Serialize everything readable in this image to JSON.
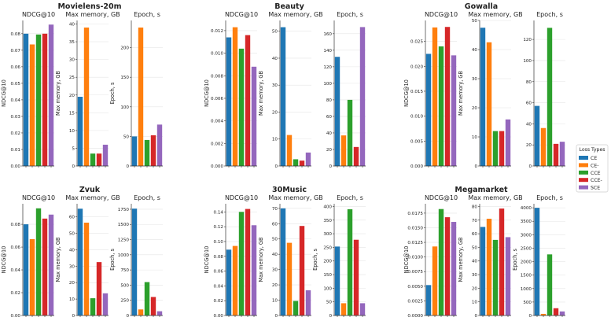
{
  "colors": {
    "CE": "#1f77b4",
    "CE-": "#ff7f0e",
    "CCE": "#2ca02c",
    "CCE-": "#d62728",
    "SCE": "#9467bd"
  },
  "legend": {
    "title": "Loss Types",
    "entries": [
      "CE",
      "CE-",
      "CCE",
      "CCE-",
      "SCE"
    ]
  },
  "chart_data": [
    {
      "type": "bar",
      "dataset": "Movielens-20m",
      "metric": "NDCG@10",
      "title": "NDCG@10",
      "ylabel": "NDCG@10",
      "categories": [
        "CE",
        "CE-",
        "CCE",
        "CCE-",
        "SCE"
      ],
      "values": [
        0.08,
        0.0735,
        0.0795,
        0.08,
        0.0855
      ],
      "ylim": [
        0,
        0.088
      ],
      "yticks": [
        "0.00",
        "0.01",
        "0.02",
        "0.03",
        "0.04",
        "0.05",
        "0.06",
        "0.07",
        "0.08"
      ],
      "ytick_values": [
        0,
        0.01,
        0.02,
        0.03,
        0.04,
        0.05,
        0.06,
        0.07,
        0.08
      ]
    },
    {
      "type": "bar",
      "dataset": "Movielens-20m",
      "metric": "Max memory, GB",
      "title": "Max memory, GB",
      "ylabel": "Max memory, GB",
      "categories": [
        "CE",
        "CE-",
        "CCE",
        "CCE-",
        "SCE"
      ],
      "values": [
        19.5,
        39,
        3.5,
        3.5,
        6
      ],
      "ylim": [
        0,
        41
      ],
      "yticks": [
        "0",
        "5",
        "10",
        "15",
        "20",
        "25",
        "30",
        "35",
        "40"
      ],
      "ytick_values": [
        0,
        5,
        10,
        15,
        20,
        25,
        30,
        35,
        40
      ]
    },
    {
      "type": "bar",
      "dataset": "Movielens-20m",
      "metric": "Epoch, s",
      "title": "Epoch, s",
      "ylabel": "Epoch, s",
      "categories": [
        "CE",
        "CE-",
        "CCE",
        "CCE-",
        "SCE"
      ],
      "values": [
        50,
        234,
        44,
        52,
        70
      ],
      "ylim": [
        0,
        246
      ],
      "yticks": [
        "0",
        "50",
        "100",
        "150",
        "200"
      ],
      "ytick_values": [
        0,
        50,
        100,
        150,
        200
      ]
    },
    {
      "type": "bar",
      "dataset": "Beauty",
      "metric": "NDCG@10",
      "title": "NDCG@10",
      "ylabel": "NDCG@10",
      "categories": [
        "CE",
        "CE-",
        "CCE",
        "CCE-",
        "SCE"
      ],
      "values": [
        0.0114,
        0.0123,
        0.0104,
        0.0116,
        0.0088
      ],
      "ylim": [
        0,
        0.0129
      ],
      "yticks": [
        "0.000",
        "0.002",
        "0.004",
        "0.006",
        "0.008",
        "0.010",
        "0.012"
      ],
      "ytick_values": [
        0,
        0.002,
        0.004,
        0.006,
        0.008,
        0.01,
        0.012
      ]
    },
    {
      "type": "bar",
      "dataset": "Beauty",
      "metric": "Max memory, GB",
      "title": "Max memory, GB",
      "ylabel": "Max memory, GB",
      "categories": [
        "CE",
        "CE-",
        "CCE",
        "CCE-",
        "SCE"
      ],
      "values": [
        51.5,
        11.5,
        2.5,
        2,
        5
      ],
      "ylim": [
        0,
        54
      ],
      "yticks": [
        "0",
        "10",
        "20",
        "30",
        "40",
        "50"
      ],
      "ytick_values": [
        0,
        10,
        20,
        30,
        40,
        50
      ]
    },
    {
      "type": "bar",
      "dataset": "Beauty",
      "metric": "Epoch, s",
      "title": "Epoch, s",
      "ylabel": "",
      "categories": [
        "CE",
        "CE-",
        "CCE",
        "CCE-",
        "SCE"
      ],
      "values": [
        132,
        37,
        80,
        23,
        168
      ],
      "ylim": [
        0,
        176
      ],
      "yticks": [
        "0",
        "20",
        "40",
        "60",
        "80",
        "100",
        "120",
        "140",
        "160"
      ],
      "ytick_values": [
        0,
        20,
        40,
        60,
        80,
        100,
        120,
        140,
        160
      ]
    },
    {
      "type": "bar",
      "dataset": "Gowalla",
      "metric": "NDCG@10",
      "title": "NDCG@10",
      "ylabel": "NDCG@10",
      "categories": [
        "CE",
        "CE-",
        "CCE",
        "CCE-",
        "SCE"
      ],
      "values": [
        0.0225,
        0.0278,
        0.024,
        0.0279,
        0.0222
      ],
      "ylim": [
        0,
        0.0292
      ],
      "yticks": [
        "0.000",
        "0.005",
        "0.010",
        "0.015",
        "0.020",
        "0.025"
      ],
      "ytick_values": [
        0,
        0.005,
        0.01,
        0.015,
        0.02,
        0.025
      ]
    },
    {
      "type": "bar",
      "dataset": "Gowalla",
      "metric": "Max memory, GB",
      "title": "Max memory, GB",
      "ylabel": "Max memory, GB",
      "categories": [
        "CE",
        "CE-",
        "CCE",
        "CCE-",
        "SCE"
      ],
      "values": [
        47.5,
        42.5,
        12,
        12,
        16
      ],
      "ylim": [
        0,
        50
      ],
      "yticks": [
        "0",
        "10",
        "20",
        "30",
        "40",
        "50"
      ],
      "ytick_values": [
        0,
        10,
        20,
        30,
        40,
        50
      ]
    },
    {
      "type": "bar",
      "dataset": "Gowalla",
      "metric": "Epoch, s",
      "title": "Epoch, s",
      "ylabel": "",
      "categories": [
        "CE",
        "CE-",
        "CCE",
        "CCE-",
        "SCE"
      ],
      "values": [
        57,
        36,
        131,
        21,
        23
      ],
      "ylim": [
        0,
        138
      ],
      "yticks": [
        "0",
        "20",
        "40",
        "60",
        "80",
        "100",
        "120"
      ],
      "ytick_values": [
        0,
        20,
        40,
        60,
        80,
        100,
        120
      ]
    },
    {
      "type": "bar",
      "dataset": "Zvuk",
      "metric": "NDCG@10",
      "title": "NDCG@10",
      "ylabel": "NDCG@10",
      "categories": [
        "CE",
        "CE-",
        "CCE",
        "CCE-",
        "SCE"
      ],
      "values": [
        0.08,
        0.067,
        0.094,
        0.085,
        0.0885
      ],
      "ylim": [
        0,
        0.098
      ],
      "yticks": [
        "0.00",
        "0.02",
        "0.04",
        "0.06",
        "0.08"
      ],
      "ytick_values": [
        0,
        0.02,
        0.04,
        0.06,
        0.08
      ]
    },
    {
      "type": "bar",
      "dataset": "Zvuk",
      "metric": "Max memory, GB",
      "title": "Max memory, GB",
      "ylabel": "Max memory, GB",
      "categories": [
        "CE",
        "CE-",
        "CCE",
        "CCE-",
        "SCE"
      ],
      "values": [
        65,
        56.5,
        10.5,
        32.5,
        13.5
      ],
      "ylim": [
        0,
        68
      ],
      "yticks": [
        "0",
        "10",
        "20",
        "30",
        "40",
        "50",
        "60"
      ],
      "ytick_values": [
        0,
        10,
        20,
        30,
        40,
        50,
        60
      ]
    },
    {
      "type": "bar",
      "dataset": "Zvuk",
      "metric": "Epoch, s",
      "title": "Epoch, s",
      "ylabel": "Epoch, s",
      "categories": [
        "CE",
        "CE-",
        "CCE",
        "CCE-",
        "SCE"
      ],
      "values": [
        1760,
        100,
        550,
        305,
        70
      ],
      "ylim": [
        0,
        1840
      ],
      "yticks": [
        "0",
        "250",
        "500",
        "750",
        "1000",
        "1250",
        "1500",
        "1750"
      ],
      "ytick_values": [
        0,
        250,
        500,
        750,
        1000,
        1250,
        1500,
        1750
      ]
    },
    {
      "type": "bar",
      "dataset": "30Music",
      "metric": "NDCG@10",
      "title": "NDCG@10",
      "ylabel": "NDCG@10",
      "categories": [
        "CE",
        "CE-",
        "CCE",
        "CCE-",
        "SCE"
      ],
      "values": [
        0.089,
        0.094,
        0.14,
        0.144,
        0.122
      ],
      "ylim": [
        0,
        0.151
      ],
      "yticks": [
        "0.00",
        "0.02",
        "0.04",
        "0.06",
        "0.08",
        "0.10",
        "0.12",
        "0.14"
      ],
      "ytick_values": [
        0,
        0.02,
        0.04,
        0.06,
        0.08,
        0.1,
        0.12,
        0.14
      ]
    },
    {
      "type": "bar",
      "dataset": "30Music",
      "metric": "Max memory, GB",
      "title": "Max memory, GB",
      "ylabel": "Max memory, GB",
      "categories": [
        "CE",
        "CE-",
        "CCE",
        "CCE-",
        "SCE"
      ],
      "values": [
        70,
        47.5,
        9.5,
        58.5,
        16.5
      ],
      "ylim": [
        0,
        73
      ],
      "yticks": [
        "0",
        "10",
        "20",
        "30",
        "40",
        "50",
        "60",
        "70"
      ],
      "ytick_values": [
        0,
        10,
        20,
        30,
        40,
        50,
        60,
        70
      ]
    },
    {
      "type": "bar",
      "dataset": "30Music",
      "metric": "Epoch, s",
      "title": "Epoch, s",
      "ylabel": "Epoch, s",
      "categories": [
        "CE",
        "CE-",
        "CCE",
        "CCE-",
        "SCE"
      ],
      "values": [
        253,
        45,
        390,
        278,
        45
      ],
      "ylim": [
        0,
        410
      ],
      "yticks": [
        "0",
        "50",
        "100",
        "150",
        "200",
        "250",
        "300",
        "350",
        "400"
      ],
      "ytick_values": [
        0,
        50,
        100,
        150,
        200,
        250,
        300,
        350,
        400
      ]
    },
    {
      "type": "bar",
      "dataset": "Megamarket",
      "metric": "NDCG@10",
      "title": "NDCG@10",
      "ylabel": "NDCG@10",
      "categories": [
        "CE",
        "CE-",
        "CCE",
        "CCE-",
        "SCE"
      ],
      "values": [
        0.0052,
        0.0118,
        0.0182,
        0.0168,
        0.016
      ],
      "ylim": [
        0,
        0.0191
      ],
      "yticks": [
        "0.0000",
        "0.0025",
        "0.0050",
        "0.0075",
        "0.0100",
        "0.0125",
        "0.0150",
        "0.0175"
      ],
      "ytick_values": [
        0,
        0.0025,
        0.005,
        0.0075,
        0.01,
        0.0125,
        0.015,
        0.0175
      ]
    },
    {
      "type": "bar",
      "dataset": "Megamarket",
      "metric": "Max memory, GB",
      "title": "Max memory, GB",
      "ylabel": "Max memory, GB",
      "categories": [
        "CE",
        "CE-",
        "CCE",
        "CCE-",
        "SCE"
      ],
      "values": [
        65,
        71,
        55.5,
        78.5,
        57.5
      ],
      "ylim": [
        0,
        82
      ],
      "yticks": [
        "0",
        "10",
        "20",
        "30",
        "40",
        "50",
        "60",
        "70",
        "80"
      ],
      "ytick_values": [
        0,
        10,
        20,
        30,
        40,
        50,
        60,
        70,
        80
      ]
    },
    {
      "type": "bar",
      "dataset": "Megamarket",
      "metric": "Epoch, s",
      "title": "Epoch, s",
      "ylabel": "Epoch, s",
      "categories": [
        "CE",
        "CE-",
        "CCE",
        "CCE-",
        "SCE"
      ],
      "values": [
        4000,
        60,
        2270,
        270,
        150
      ],
      "ylim": [
        0,
        4150
      ],
      "yticks": [
        "0",
        "500",
        "1000",
        "1500",
        "2000",
        "2500",
        "3000",
        "3500",
        "4000"
      ],
      "ytick_values": [
        0,
        500,
        1000,
        1500,
        2000,
        2500,
        3000,
        3500,
        4000
      ]
    }
  ]
}
